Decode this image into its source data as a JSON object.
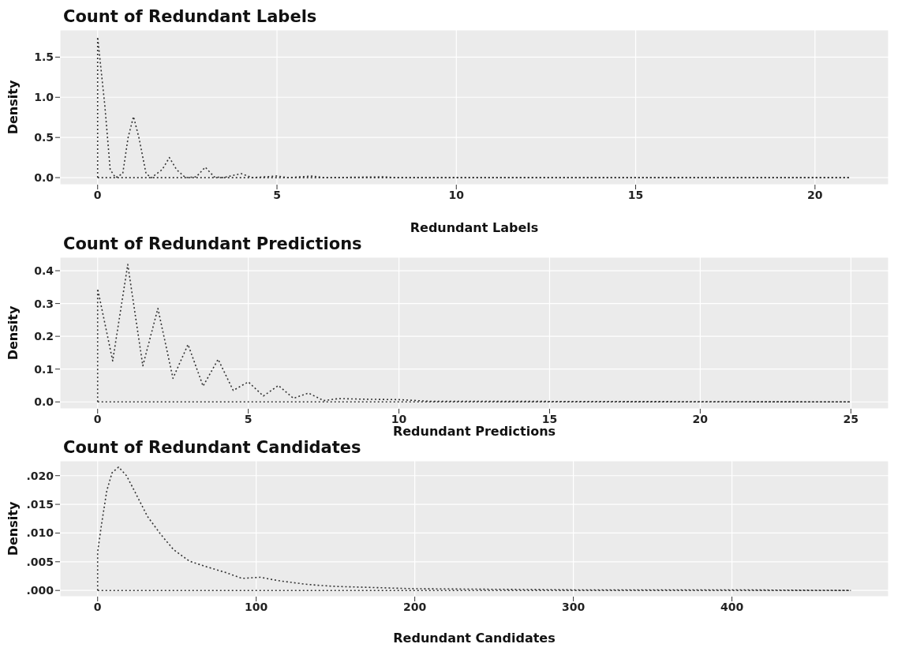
{
  "chart_data": [
    {
      "type": "line",
      "title": "Count of Redundant Labels",
      "xlabel": "Redundant Labels",
      "ylabel": "Density",
      "line_style": "dotted",
      "grid": true,
      "series": [
        {
          "color": "#333333",
          "x": [
            0,
            0,
            0.2,
            0.35,
            0.5,
            0.7,
            0.85,
            1,
            1.15,
            1.35,
            1.5,
            1.8,
            2,
            2.2,
            2.45,
            2.75,
            3,
            3.25,
            3.5,
            4,
            4.3,
            5,
            5.3,
            6,
            6.3,
            8,
            8.3,
            21
          ],
          "values": [
            0,
            1.75,
            0.9,
            0.1,
            0,
            0.05,
            0.5,
            0.76,
            0.5,
            0.05,
            0,
            0.1,
            0.25,
            0.1,
            0,
            0.01,
            0.13,
            0.01,
            0,
            0.05,
            0,
            0.02,
            0,
            0.02,
            0,
            0.01,
            0,
            0
          ]
        },
        {
          "color": "#333333",
          "x": [
            0,
            21
          ],
          "values": [
            0,
            0
          ]
        }
      ],
      "xlim": [
        -1.05,
        22.05
      ],
      "xticks": [
        0,
        5,
        10,
        15,
        20
      ],
      "ylim": [
        -0.0875,
        1.8375
      ],
      "yticks": [
        {
          "value": 0,
          "label": "0.0"
        },
        {
          "value": 0.5,
          "label": "0.5"
        },
        {
          "value": 1,
          "label": "1.0"
        },
        {
          "value": 1.5,
          "label": "1.5"
        }
      ]
    },
    {
      "type": "line",
      "title": "Count of Redundant Predictions",
      "xlabel": "Redundant Predictions",
      "ylabel": "Density",
      "line_style": "dotted",
      "grid": true,
      "series": [
        {
          "color": "#333333",
          "x": [
            0,
            0,
            0.5,
            1,
            1.5,
            2,
            2.5,
            3,
            3.5,
            4,
            4.5,
            5,
            5.5,
            6,
            6.5,
            7,
            7.5,
            8,
            9,
            10,
            11,
            25
          ],
          "values": [
            0,
            0.345,
            0.125,
            0.419,
            0.11,
            0.285,
            0.072,
            0.175,
            0.048,
            0.13,
            0.035,
            0.061,
            0.018,
            0.05,
            0.011,
            0.027,
            0.004,
            0.01,
            0.008,
            0.007,
            0.002,
            0
          ]
        },
        {
          "color": "#333333",
          "x": [
            0,
            25
          ],
          "values": [
            0,
            0
          ]
        }
      ],
      "xlim": [
        -1.25,
        26.25
      ],
      "xticks": [
        0,
        5,
        10,
        15,
        20,
        25
      ],
      "ylim": [
        -0.021,
        0.441
      ],
      "yticks": [
        {
          "value": 0,
          "label": "0.0"
        },
        {
          "value": 0.1,
          "label": "0.1"
        },
        {
          "value": 0.2,
          "label": "0.2"
        },
        {
          "value": 0.3,
          "label": "0.3"
        },
        {
          "value": 0.4,
          "label": "0.4"
        }
      ]
    },
    {
      "type": "line",
      "title": "Count of Redundant Candidates",
      "xlabel": "Redundant Candidates",
      "ylabel": "Density",
      "line_style": "dotted",
      "grid": true,
      "series": [
        {
          "color": "#333333",
          "x": [
            0,
            0,
            2.5,
            5.8,
            9.1,
            13.2,
            18.2,
            23.1,
            31.4,
            39.7,
            47.9,
            57.9,
            67.8,
            81,
            91,
            102.5,
            114,
            130.6,
            139,
            150,
            175,
            200,
            250,
            300,
            400,
            475
          ],
          "values": [
            0,
            0.0067,
            0.0116,
            0.0174,
            0.0205,
            0.0215,
            0.02,
            0.0174,
            0.0129,
            0.0098,
            0.0071,
            0.0051,
            0.0042,
            0.0031,
            0.0021,
            0.0023,
            0.0017,
            0.0011,
            0.0009,
            0.0007,
            0.0005,
            0.0003,
            0.0002,
            0.0001,
            0.0001,
            0
          ]
        },
        {
          "color": "#333333",
          "x": [
            0,
            475
          ],
          "values": [
            0,
            0
          ]
        }
      ],
      "xlim": [
        -23.75,
        498.75
      ],
      "xticks": [
        0,
        100,
        200,
        300,
        400
      ],
      "ylim": [
        -0.001075,
        0.022575
      ],
      "yticks": [
        {
          "value": 0,
          "label": ".000"
        },
        {
          "value": 0.005,
          "label": ".005"
        },
        {
          "value": 0.01,
          "label": ".010"
        },
        {
          "value": 0.015,
          "label": ".015"
        },
        {
          "value": 0.02,
          "label": ".020"
        }
      ]
    }
  ]
}
